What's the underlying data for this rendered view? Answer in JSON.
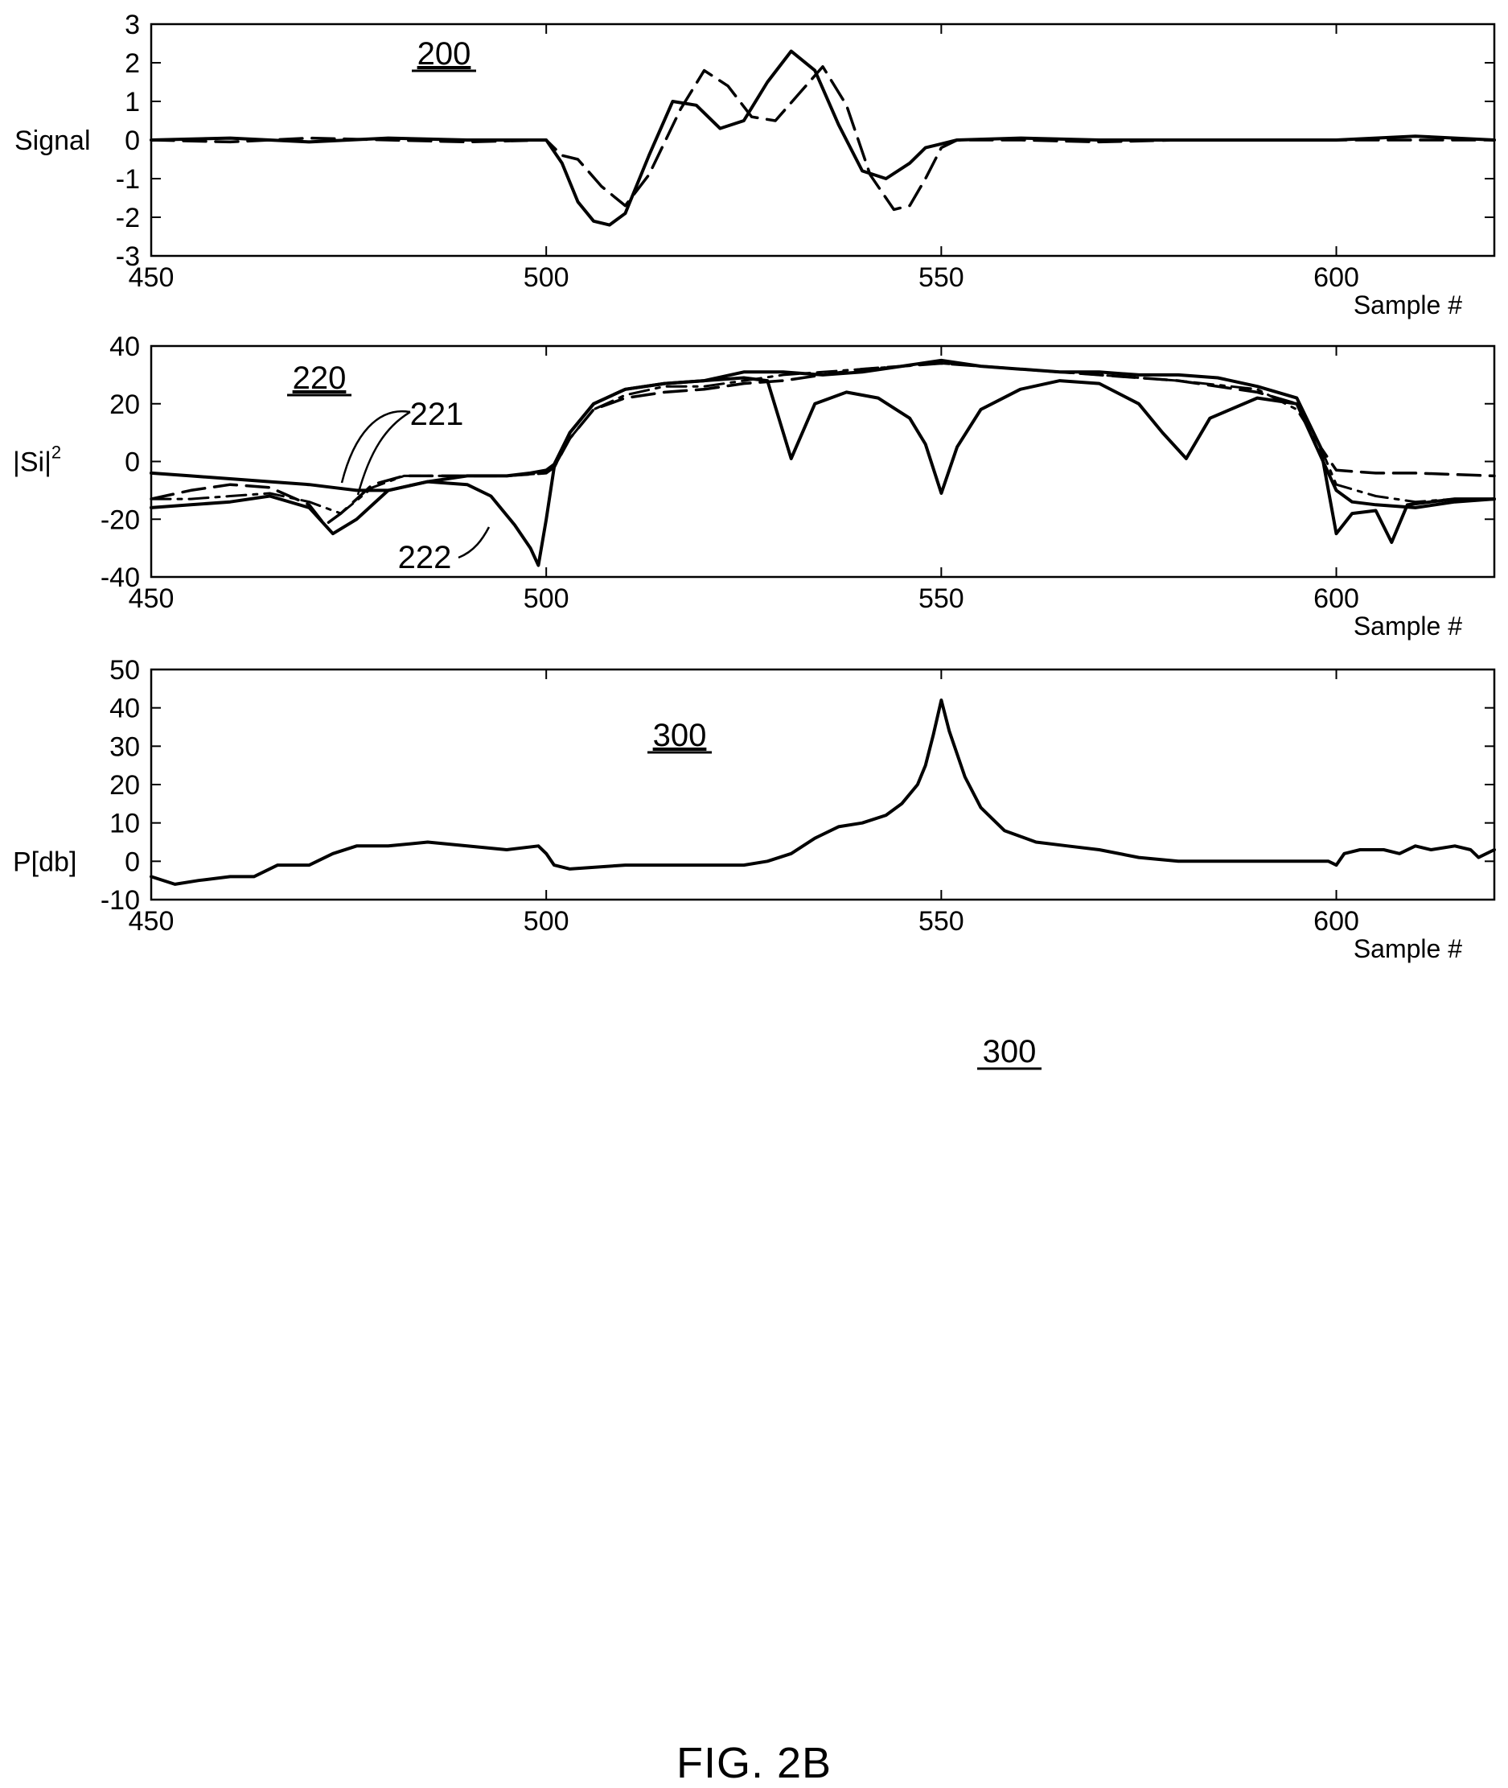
{
  "figure_caption": "FIG. 2B",
  "standalone_ref": "300",
  "chart_data": [
    {
      "type": "line",
      "ref": "200",
      "ylabel": "Signal",
      "xlabel": "Sample #",
      "xlim": [
        450,
        620
      ],
      "ylim": [
        -3,
        3
      ],
      "xticks": [
        450,
        500,
        550,
        600
      ],
      "yticks": [
        -3,
        -2,
        -1,
        0,
        1,
        2,
        3
      ],
      "grid": false,
      "series": [
        {
          "style": "solid",
          "x": [
            450,
            460,
            470,
            480,
            490,
            500,
            502,
            504,
            506,
            508,
            510,
            513,
            516,
            519,
            522,
            525,
            528,
            531,
            534,
            537,
            540,
            543,
            546,
            548,
            550,
            552,
            560,
            570,
            580,
            590,
            600,
            610,
            620
          ],
          "y": [
            0,
            0.05,
            -0.05,
            0.05,
            0,
            0,
            -0.6,
            -1.6,
            -2.1,
            -2.2,
            -1.9,
            -0.4,
            1.0,
            0.9,
            0.3,
            0.5,
            1.5,
            2.3,
            1.8,
            0.4,
            -0.8,
            -1.0,
            -0.6,
            -0.2,
            -0.1,
            0,
            0.05,
            0,
            0,
            0,
            0,
            0.1,
            0
          ]
        },
        {
          "style": "dashed",
          "x": [
            450,
            460,
            470,
            480,
            490,
            500,
            502,
            504,
            507,
            510,
            513,
            517,
            520,
            523,
            526,
            529,
            532,
            535,
            538,
            541,
            544,
            546,
            548,
            550,
            552,
            560,
            570,
            580,
            590,
            600,
            610,
            620
          ],
          "y": [
            0,
            -0.05,
            0.05,
            0,
            -0.05,
            0,
            -0.4,
            -0.5,
            -1.2,
            -1.7,
            -0.9,
            0.8,
            1.8,
            1.4,
            0.6,
            0.5,
            1.2,
            1.9,
            0.9,
            -0.9,
            -1.8,
            -1.7,
            -1.0,
            -0.2,
            0,
            0,
            -0.05,
            0,
            0,
            0,
            0,
            0
          ]
        }
      ]
    },
    {
      "type": "line",
      "ref": "220",
      "ylabel": "|Si|",
      "ylabel_superscript": "2",
      "xlabel": "Sample #",
      "xlim": [
        450,
        620
      ],
      "ylim": [
        -40,
        40
      ],
      "xticks": [
        450,
        500,
        550,
        600
      ],
      "yticks": [
        -40,
        -20,
        0,
        20,
        40
      ],
      "grid": false,
      "annotations": [
        "221",
        "222"
      ],
      "series": [
        {
          "style": "solid",
          "x": [
            450,
            455,
            460,
            465,
            470,
            473,
            476,
            480,
            485,
            490,
            495,
            498,
            500,
            501,
            503,
            506,
            510,
            515,
            520,
            525,
            528,
            531,
            534,
            538,
            542,
            546,
            548,
            550,
            552,
            555,
            560,
            565,
            570,
            575,
            578,
            581,
            584,
            590,
            595,
            600,
            602,
            605,
            610,
            615,
            620
          ],
          "y": [
            -4,
            -5,
            -6,
            -7,
            -8,
            -9,
            -10,
            -10,
            -7,
            -5,
            -5,
            -4,
            -3,
            -1,
            10,
            20,
            25,
            27,
            28,
            29,
            28,
            1,
            20,
            24,
            22,
            15,
            6,
            -11,
            5,
            18,
            25,
            28,
            27,
            20,
            10,
            1,
            15,
            22,
            20,
            -10,
            -14,
            -15,
            -16,
            -14,
            -13
          ]
        },
        {
          "style": "solid",
          "x": [
            450,
            455,
            460,
            465,
            470,
            473,
            476,
            480,
            485,
            490,
            493,
            496,
            498,
            499,
            500,
            501,
            503,
            506,
            510,
            515,
            520,
            525,
            530,
            535,
            540,
            545,
            550,
            555,
            560,
            565,
            570,
            575,
            580,
            585,
            590,
            595,
            598,
            600,
            602,
            605,
            607,
            609,
            612,
            615,
            620
          ],
          "y": [
            -16,
            -15,
            -14,
            -12,
            -16,
            -25,
            -20,
            -10,
            -7,
            -8,
            -12,
            -22,
            -30,
            -36,
            -20,
            -2,
            10,
            20,
            25,
            27,
            28,
            31,
            31,
            30,
            31,
            33,
            35,
            33,
            32,
            31,
            31,
            30,
            30,
            29,
            26,
            22,
            5,
            -25,
            -18,
            -17,
            -28,
            -15,
            -14,
            -13,
            -13
          ]
        },
        {
          "style": "dashed",
          "x": [
            450,
            455,
            460,
            465,
            470,
            472,
            474,
            478,
            482,
            486,
            490,
            495,
            500,
            501,
            503,
            506,
            510,
            515,
            520,
            525,
            530,
            535,
            540,
            545,
            550,
            555,
            560,
            570,
            580,
            590,
            595,
            598,
            600,
            605,
            610,
            620
          ],
          "y": [
            -13,
            -10,
            -8,
            -9,
            -15,
            -22,
            -18,
            -8,
            -5,
            -5,
            -5,
            -5,
            -4,
            -2,
            8,
            18,
            22,
            24,
            25,
            27,
            28,
            30,
            32,
            33,
            34,
            33,
            32,
            30,
            28,
            24,
            20,
            5,
            -3,
            -4,
            -4,
            -5
          ]
        },
        {
          "style": "dash-dot",
          "x": [
            450,
            455,
            460,
            465,
            470,
            474,
            478,
            482,
            488,
            495,
            500,
            501,
            503,
            506,
            510,
            515,
            520,
            525,
            530,
            535,
            540,
            545,
            550,
            555,
            560,
            570,
            580,
            590,
            595,
            598,
            600,
            605,
            610,
            615,
            620
          ],
          "y": [
            -13,
            -13,
            -12,
            -11,
            -14,
            -18,
            -9,
            -5,
            -5,
            -5,
            -4,
            -2,
            8,
            18,
            23,
            26,
            26,
            28,
            30,
            31,
            32,
            33,
            34,
            33,
            32,
            30,
            28,
            25,
            18,
            5,
            -8,
            -12,
            -14,
            -13,
            -13
          ]
        }
      ]
    },
    {
      "type": "line",
      "ref": "300",
      "ylabel": "P[db]",
      "xlabel": "Sample #",
      "xlim": [
        450,
        620
      ],
      "ylim": [
        -10,
        50
      ],
      "xticks": [
        450,
        500,
        550,
        600
      ],
      "yticks": [
        -10,
        0,
        10,
        20,
        30,
        40,
        50
      ],
      "grid": false,
      "series": [
        {
          "style": "solid",
          "x": [
            450,
            453,
            456,
            460,
            463,
            466,
            470,
            473,
            476,
            480,
            485,
            490,
            495,
            499,
            500,
            501,
            503,
            510,
            520,
            525,
            528,
            531,
            534,
            537,
            540,
            543,
            545,
            547,
            548,
            549,
            550,
            551,
            552,
            553,
            555,
            558,
            562,
            566,
            570,
            575,
            580,
            585,
            590,
            595,
            599,
            600,
            601,
            603,
            606,
            608,
            610,
            612,
            615,
            617,
            618,
            620
          ],
          "y": [
            -4,
            -6,
            -5,
            -4,
            -4,
            -1,
            -1,
            2,
            4,
            4,
            5,
            4,
            3,
            4,
            2,
            -1,
            -2,
            -1,
            -1,
            -1,
            0,
            2,
            6,
            9,
            10,
            12,
            15,
            20,
            25,
            33,
            42,
            34,
            28,
            22,
            14,
            8,
            5,
            4,
            3,
            1,
            0,
            0,
            0,
            0,
            0,
            -1,
            2,
            3,
            3,
            2,
            4,
            3,
            4,
            3,
            1,
            3
          ]
        }
      ]
    }
  ]
}
